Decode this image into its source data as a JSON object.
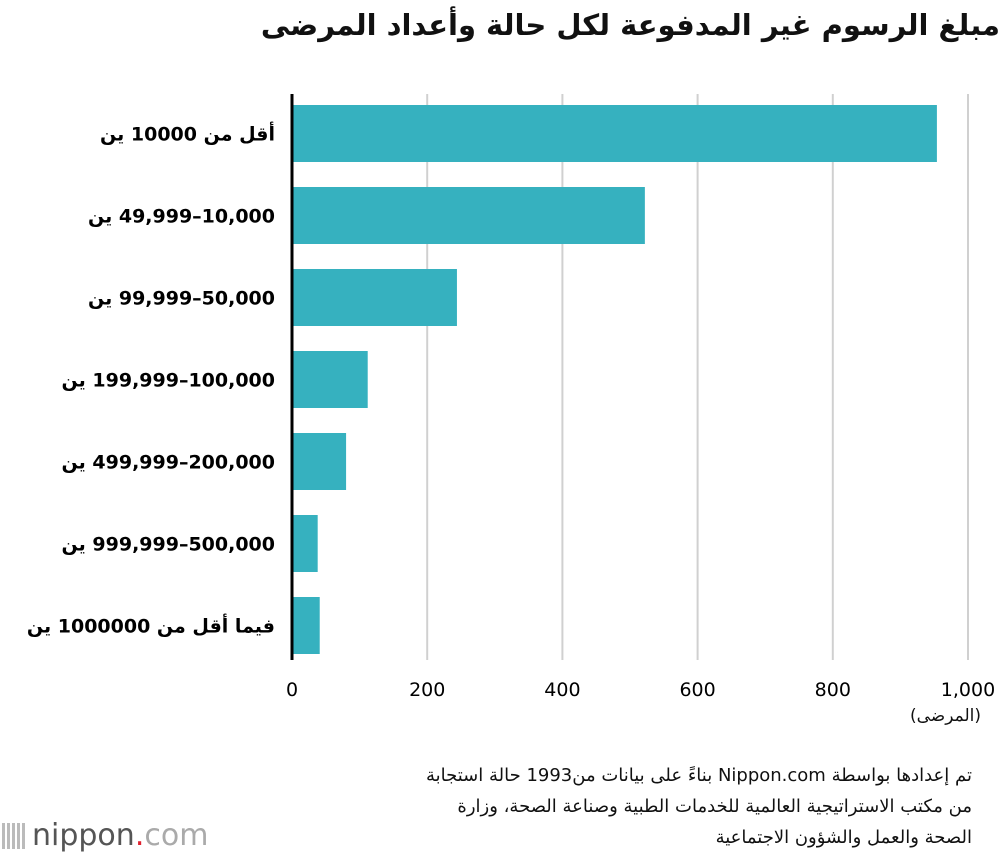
{
  "chart_data": {
    "type": "bar",
    "orientation": "horizontal",
    "title": "مبلغ الرسوم غير المدفوعة لكل حالة وأعداد المرضى",
    "categories": [
      "أقل من 10000 ين",
      "10,000–49,999 ين",
      "50,000–99,999 ين",
      "100,000–199,999 ين",
      "200,000–499,999 ين",
      "500,000–999,999 ين",
      "فيما أقل من 1000000 ين"
    ],
    "values": [
      954,
      522,
      244,
      112,
      80,
      38,
      41
    ],
    "xlim": [
      0,
      1000
    ],
    "xticks": [
      0,
      200,
      400,
      600,
      800,
      1000
    ],
    "xtick_labels": [
      "0",
      "200",
      "400",
      "600",
      "800",
      "1,000"
    ],
    "xlabel": "(المرضى)",
    "grid": "vertical",
    "bar_color": "#36b1bf"
  },
  "source": "تم إعدادها بواسطة Nippon.com بناءً على بيانات من1993 حالة استجابة من مكتب الاستراتيجية العالمية للخدمات الطبية وصناعة الصحة، وزارة الصحة والعمل والشؤون الاجتماعية",
  "logo": {
    "name": "nippon",
    "dot": ".",
    "suffix": "com"
  }
}
